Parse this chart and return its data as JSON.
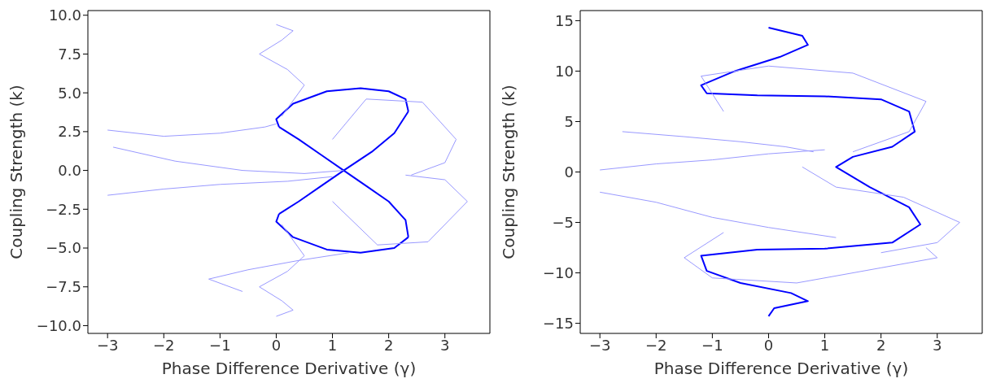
{
  "chart_data": [
    {
      "type": "line",
      "xlabel": "Phase Difference Derivative (γ)",
      "ylabel": "Coupling Strength (k)",
      "xlim": [
        -3.35,
        3.8
      ],
      "xticks": [
        -3,
        -2,
        -1,
        0,
        1,
        2,
        3
      ],
      "ylim": [
        -10.5,
        10.3
      ],
      "yticks": [
        {
          "value": -10,
          "label": "−10.0"
        },
        {
          "value": -7.5,
          "label": "−7.5"
        },
        {
          "value": -5,
          "label": "−5.0"
        },
        {
          "value": -2.5,
          "label": "−2.5"
        },
        {
          "value": 0,
          "label": "0.0"
        },
        {
          "value": 2.5,
          "label": "2.5"
        },
        {
          "value": 5,
          "label": "5.0"
        },
        {
          "value": 7.5,
          "label": "7.5"
        },
        {
          "value": 10,
          "label": "10.0"
        }
      ],
      "grid": false,
      "legend": false,
      "marker": "none",
      "line_style": "solid",
      "series": [
        {
          "color": "#0000ff",
          "x": [
            0.05,
            0.4,
            0.8,
            1.2,
            1.7,
            2.1,
            2.35
          ],
          "values": [
            -2.8,
            -2.0,
            -1.0,
            0,
            1.2,
            2.4,
            3.8
          ]
        },
        {
          "color": "#0000ff",
          "x": [
            2.35,
            2.3,
            2.0,
            1.5,
            0.9,
            0.3,
            0.0,
            0.05
          ],
          "values": [
            3.8,
            4.6,
            5.1,
            5.3,
            5.1,
            4.3,
            3.3,
            2.8
          ]
        },
        {
          "color": "#0000ff",
          "x": [
            0.05,
            0.4,
            0.8,
            1.2,
            1.6,
            2.0,
            2.3,
            2.35
          ],
          "values": [
            2.8,
            2.0,
            1.0,
            0,
            -1.0,
            -2.0,
            -3.2,
            -4.3
          ]
        },
        {
          "color": "#0000ff",
          "x": [
            2.35,
            2.1,
            1.5,
            0.9,
            0.3,
            0.0,
            0.05
          ],
          "values": [
            -4.3,
            -5.0,
            -5.3,
            -5.1,
            -4.3,
            -3.3,
            -2.8
          ]
        },
        {
          "color": "#9999ff",
          "x": [
            -3.0,
            -2.0,
            -1.0,
            -0.2,
            0.0
          ],
          "values": [
            2.6,
            2.2,
            2.4,
            2.8,
            3.0
          ]
        },
        {
          "color": "#9999ff",
          "x": [
            -3.0,
            -2.0,
            -1.0,
            0.2,
            1.0
          ],
          "values": [
            -1.6,
            -1.2,
            -0.9,
            -0.7,
            -0.4
          ]
        },
        {
          "color": "#9999ff",
          "x": [
            -2.9,
            -1.8,
            -0.6,
            0.5,
            1.2
          ],
          "values": [
            1.5,
            0.6,
            0.0,
            -0.2,
            0.0
          ]
        },
        {
          "color": "#9999ff",
          "x": [
            0.1,
            0.5,
            0.2,
            -0.3,
            0.1,
            0.3,
            0.0
          ],
          "values": [
            3.5,
            5.5,
            6.5,
            7.5,
            8.4,
            9.0,
            9.4
          ]
        },
        {
          "color": "#9999ff",
          "x": [
            0.1,
            0.5,
            0.2,
            -0.3,
            0.1,
            0.3,
            0.0
          ],
          "values": [
            -3.5,
            -5.5,
            -6.5,
            -7.5,
            -8.4,
            -9.0,
            -9.4
          ]
        },
        {
          "color": "#9999ff",
          "x": [
            1.0,
            1.6,
            2.6,
            3.2,
            3.0,
            2.4
          ],
          "values": [
            2.0,
            4.6,
            4.4,
            2.0,
            0.5,
            -0.3
          ]
        },
        {
          "color": "#9999ff",
          "x": [
            1.0,
            1.8,
            2.7,
            3.4,
            3.0,
            2.3
          ],
          "values": [
            -2.0,
            -4.8,
            -4.6,
            -2.0,
            -0.6,
            -0.3
          ]
        },
        {
          "color": "#9999ff",
          "x": [
            -0.6,
            -1.2,
            -0.5,
            0.4,
            1.3
          ],
          "values": [
            -7.8,
            -7.0,
            -6.4,
            -5.8,
            -5.3
          ]
        }
      ]
    },
    {
      "type": "line",
      "xlabel": "Phase Difference Derivative (γ)",
      "ylabel": "Coupling Strength (k)",
      "xlim": [
        -3.35,
        3.8
      ],
      "xticks": [
        -3,
        -2,
        -1,
        0,
        1,
        2,
        3
      ],
      "ylim": [
        -16,
        16
      ],
      "yticks": [
        {
          "value": -15,
          "label": "−15"
        },
        {
          "value": -10,
          "label": "−10"
        },
        {
          "value": -5,
          "label": "−5"
        },
        0,
        5,
        10,
        15
      ],
      "grid": false,
      "legend": false,
      "marker": "none",
      "line_style": "solid",
      "series": [
        {
          "color": "#0000ff",
          "x": [
            0.0,
            0.6,
            0.7,
            0.2,
            -0.6,
            -1.2,
            -1.1,
            -0.2,
            1.0,
            2.0,
            2.5,
            2.6,
            2.2,
            1.5,
            1.2,
            1.8,
            2.5,
            2.7,
            2.2,
            1.0,
            -0.2,
            -1.2,
            -1.1,
            -0.5,
            0.4,
            0.7,
            0.1,
            0.0
          ],
          "values": [
            14.3,
            13.5,
            12.6,
            11.4,
            10.0,
            8.6,
            7.8,
            7.6,
            7.5,
            7.2,
            6.0,
            4.0,
            2.5,
            1.5,
            0.5,
            -1.5,
            -3.5,
            -5.2,
            -7.0,
            -7.6,
            -7.7,
            -8.3,
            -9.8,
            -11.0,
            -12.0,
            -12.8,
            -13.5,
            -14.3
          ]
        },
        {
          "color": "#9999ff",
          "x": [
            -3.0,
            -2.0,
            -1.0,
            0.0,
            1.0
          ],
          "values": [
            0.2,
            0.8,
            1.2,
            1.8,
            2.2
          ]
        },
        {
          "color": "#9999ff",
          "x": [
            -3.0,
            -2.0,
            -1.0,
            0.0,
            1.2
          ],
          "values": [
            -2.0,
            -3.0,
            -4.5,
            -5.5,
            -6.5
          ]
        },
        {
          "color": "#9999ff",
          "x": [
            -2.6,
            -1.5,
            -0.5,
            0.3,
            0.8
          ],
          "values": [
            4.0,
            3.5,
            3.0,
            2.5,
            2.0
          ]
        },
        {
          "color": "#9999ff",
          "x": [
            0.6,
            1.2,
            2.4,
            3.4,
            3.0,
            2.0
          ],
          "values": [
            0.5,
            -1.5,
            -2.5,
            -5.0,
            -7.0,
            -8.0
          ]
        },
        {
          "color": "#9999ff",
          "x": [
            -0.8,
            -1.5,
            -1.0,
            0.5,
            2.0,
            3.0,
            2.8
          ],
          "values": [
            -6.0,
            -8.5,
            -10.5,
            -11.0,
            -9.5,
            -8.5,
            -7.5
          ]
        },
        {
          "color": "#9999ff",
          "x": [
            -0.8,
            -1.2,
            0.0,
            1.5,
            2.8,
            2.5,
            1.5
          ],
          "values": [
            6.0,
            9.5,
            10.5,
            9.8,
            7.0,
            4.0,
            2.0
          ]
        }
      ]
    }
  ]
}
